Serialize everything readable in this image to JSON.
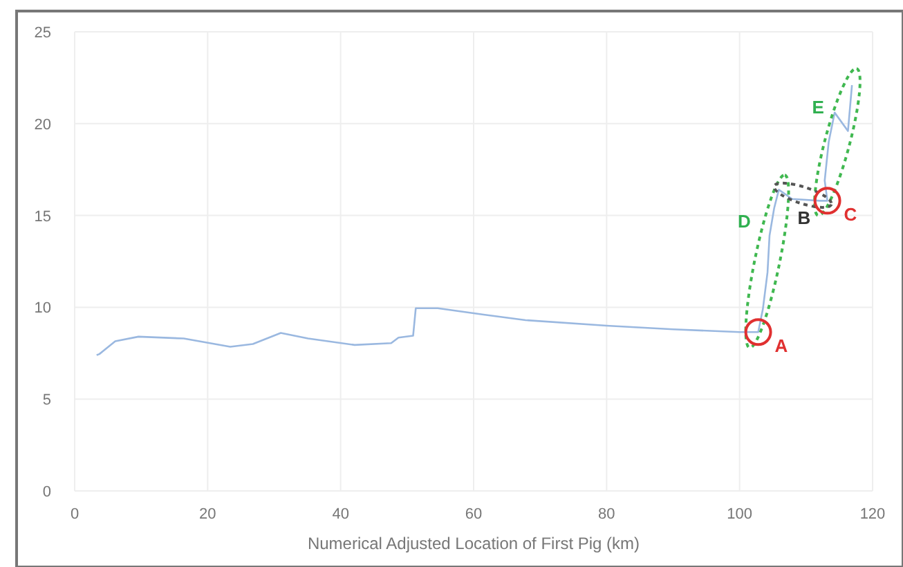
{
  "chart_data": {
    "type": "line",
    "xlabel": "Numerical Adjusted Location of First Pig (km)",
    "x": [
      3.3,
      3.7,
      6.1,
      9.6,
      16.4,
      23.4,
      26.8,
      31,
      35.1,
      42.1,
      47.6,
      48.7,
      50.9,
      51.3,
      54.6,
      61.5,
      67.8,
      80,
      90,
      100,
      102.8,
      103.5,
      104.2,
      104.5,
      105.2,
      105.9,
      107.9,
      112.1,
      113.2,
      112.8,
      113.4,
      114.3,
      116.3,
      116.9
    ],
    "series": [
      {
        "color": "#9ab8e0",
        "values": [
          7.4,
          7.45,
          8.15,
          8.4,
          8.3,
          7.85,
          8,
          8.6,
          8.3,
          7.95,
          8.05,
          8.35,
          8.45,
          9.95,
          9.95,
          9.6,
          9.3,
          9,
          8.8,
          8.65,
          8.65,
          9.9,
          11.9,
          13.9,
          15.4,
          16.4,
          15.9,
          15.8,
          15.8,
          16.9,
          19,
          20.6,
          19.6,
          22.1
        ]
      }
    ],
    "xlim": [
      0,
      120
    ],
    "xticks": [
      0,
      20,
      40,
      60,
      80,
      100,
      120
    ],
    "ylim": [
      0,
      25
    ],
    "yticks": [
      0,
      5,
      10,
      15,
      20,
      25
    ],
    "grid": true,
    "annotations": [
      {
        "text": "A",
        "x": 102.8,
        "y": 8.65
      },
      "B",
      {
        "text": "C",
        "x": 113.2,
        "y": 15.8
      },
      "D",
      "E"
    ]
  }
}
